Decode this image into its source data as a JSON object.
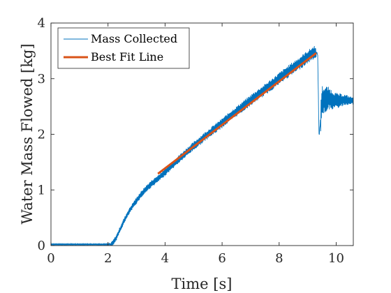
{
  "chart_data": {
    "type": "line",
    "xlabel": "Time [s]",
    "ylabel": "Water Mass Flowed [kg]",
    "xlim": [
      0,
      10.6
    ],
    "ylim": [
      0,
      4
    ],
    "xticks": [
      0,
      2,
      4,
      6,
      8,
      10
    ],
    "yticks": [
      0,
      1,
      2,
      3,
      4
    ],
    "grid": false,
    "legend_position": "top-left",
    "series": [
      {
        "name": "Mass Collected",
        "color": "#0072BD",
        "style": "noisy-line",
        "x": [
          0,
          0.5,
          1.0,
          1.5,
          2.0,
          2.15,
          2.3,
          2.5,
          2.7,
          2.9,
          3.1,
          3.3,
          3.5,
          3.7,
          3.9,
          4.2,
          4.5,
          4.8,
          5.1,
          5.4,
          5.7,
          6.0,
          6.3,
          6.6,
          6.9,
          7.2,
          7.5,
          7.8,
          8.1,
          8.4,
          8.7,
          9.0,
          9.25,
          9.35,
          9.4,
          9.5,
          9.7,
          10.0,
          10.3,
          10.6
        ],
        "y": [
          0.02,
          0.02,
          0.02,
          0.02,
          0.02,
          0.03,
          0.15,
          0.38,
          0.58,
          0.74,
          0.88,
          1.0,
          1.1,
          1.18,
          1.27,
          1.42,
          1.56,
          1.7,
          1.83,
          1.96,
          2.08,
          2.2,
          2.33,
          2.45,
          2.57,
          2.69,
          2.8,
          2.92,
          3.04,
          3.16,
          3.27,
          3.39,
          3.48,
          3.45,
          1.95,
          2.6,
          2.65,
          2.6,
          2.62,
          2.6
        ]
      },
      {
        "name": "Best Fit Line",
        "color": "#D95319",
        "style": "line",
        "x": [
          3.75,
          9.3
        ],
        "y": [
          1.29,
          3.46
        ]
      }
    ]
  }
}
